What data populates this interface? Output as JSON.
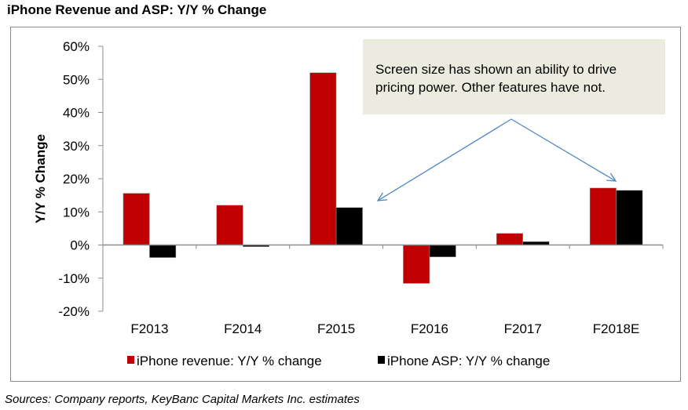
{
  "title": "iPhone Revenue and ASP: Y/Y % Change",
  "source": "Sources: Company reports, KeyBanc Capital Markets Inc. estimates",
  "colors": {
    "revenue": "#C00000",
    "asp": "#000000",
    "annotation_bg": "#ECEBE0",
    "arrow": "#4F88C6",
    "axis": "#8c8c8c"
  },
  "annotation": {
    "lines": [
      "Screen size has shown an ability to drive",
      "pricing power. Other features have not."
    ],
    "arrow_targets": [
      "F2015",
      "F2018E"
    ]
  },
  "chart_data": {
    "type": "bar",
    "title": "iPhone Revenue and ASP: Y/Y % Change",
    "xlabel": "",
    "ylabel": "Y/Y % Change",
    "ylim": [
      -20,
      60
    ],
    "yticks": [
      60,
      50,
      40,
      30,
      20,
      10,
      0,
      -10,
      -20
    ],
    "ytick_labels": [
      "60%",
      "50%",
      "40%",
      "30%",
      "20%",
      "10%",
      "0%",
      "-10%",
      "-20%"
    ],
    "grid": false,
    "legend_position": "bottom",
    "categories": [
      "F2013",
      "F2014",
      "F2015",
      "F2016",
      "F2017",
      "F2018E"
    ],
    "series": [
      {
        "name": "iPhone revenue: Y/Y % change",
        "color": "#C00000",
        "values": [
          15.6,
          12.0,
          52.0,
          -11.6,
          3.5,
          17.2
        ]
      },
      {
        "name": "iPhone ASP: Y/Y % change",
        "color": "#000000",
        "values": [
          -3.8,
          -0.5,
          11.3,
          -3.6,
          1.0,
          16.5
        ]
      }
    ]
  }
}
